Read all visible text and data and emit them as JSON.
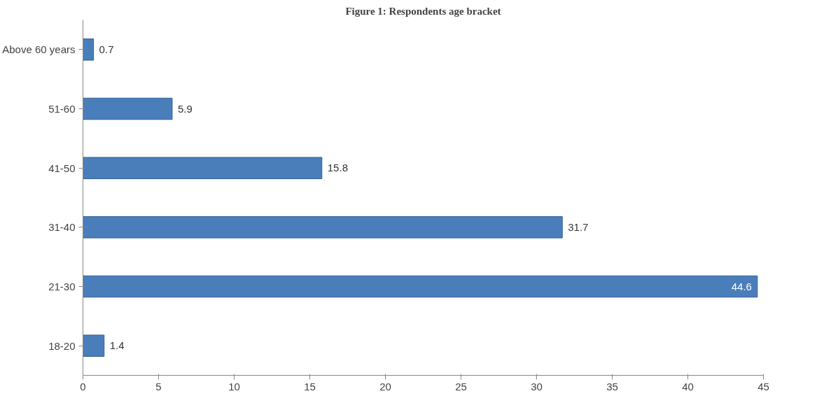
{
  "chart_data": {
    "type": "bar",
    "orientation": "horizontal",
    "title": "Figure 1: Respondents age bracket",
    "categories": [
      "Above 60 years",
      "51-60",
      "41-50",
      "31-40",
      "21-30",
      "18-20"
    ],
    "values": [
      0.7,
      5.9,
      15.8,
      31.7,
      44.6,
      1.4
    ],
    "color": "#4a7ebb",
    "xlim": [
      0,
      45
    ],
    "xticks": [
      0,
      5,
      10,
      15,
      20,
      25,
      30,
      35,
      40,
      45
    ],
    "data_labels": true,
    "grid": false
  }
}
